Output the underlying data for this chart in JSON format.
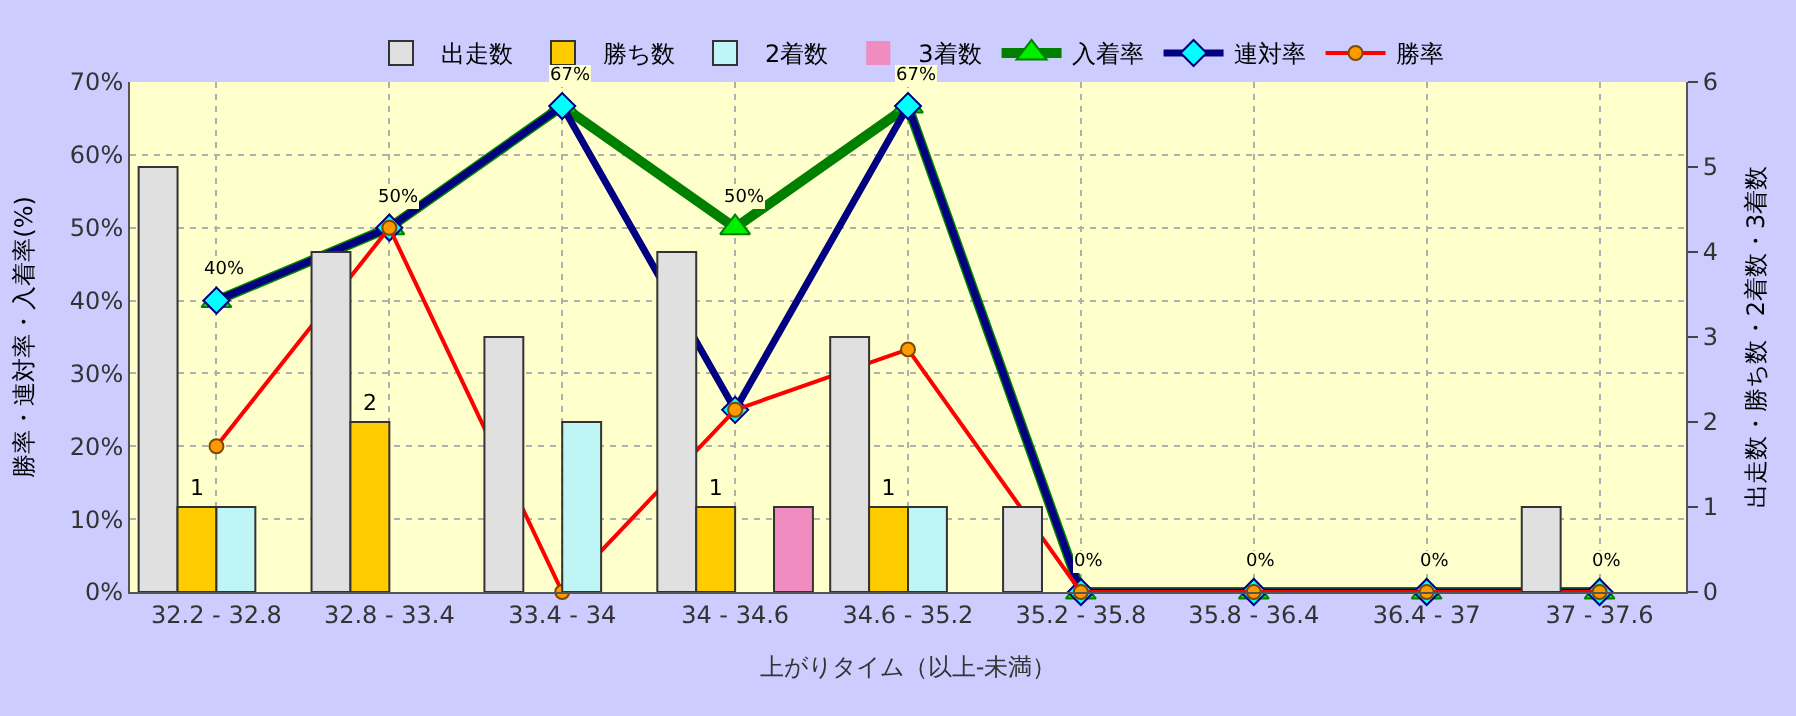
{
  "chart_data": {
    "type": "bar",
    "xlabel": "上がりタイム（以上-未満）",
    "ylabel": "勝率・連対率・入着率(%)",
    "y2label": "出走数・勝ち数・2着数・3着数",
    "categories": [
      "32.2 - 32.8",
      "32.8 - 33.4",
      "33.4 - 34",
      "34 - 34.6",
      "34.6 - 35.2",
      "35.2 - 35.8",
      "35.8 - 36.4",
      "36.4 - 37",
      "37 - 37.6"
    ],
    "series": [
      {
        "name": "出走数",
        "axis": "y2",
        "color": "#e0e0e0",
        "values": [
          5,
          4,
          3,
          4,
          3,
          1,
          0,
          0,
          1
        ]
      },
      {
        "name": "勝ち数",
        "axis": "y2",
        "color": "#ffcc00",
        "values": [
          1,
          2,
          0,
          1,
          1,
          0,
          0,
          0,
          0
        ],
        "value_labels": [
          "1",
          "2",
          null,
          "1",
          "1",
          null,
          null,
          null,
          null
        ]
      },
      {
        "name": "2着数",
        "axis": "y2",
        "color": "#bff5f5",
        "values": [
          1,
          0,
          2,
          0,
          1,
          0,
          0,
          0,
          0
        ]
      },
      {
        "name": "3着数",
        "axis": "y2",
        "color": "#f08cc0",
        "values": [
          0,
          0,
          0,
          1,
          0,
          0,
          0,
          0,
          0
        ]
      },
      {
        "name": "入着率",
        "type": "line",
        "marker": "triangle",
        "color": "#008000",
        "values": [
          40,
          50,
          66.7,
          50,
          66.7,
          0,
          0,
          0,
          0
        ],
        "value_labels": [
          "40%",
          "50%",
          "67%",
          "50%",
          "67%",
          "0%",
          "0%",
          "0%",
          "0%"
        ]
      },
      {
        "name": "連対率",
        "type": "line",
        "marker": "diamond",
        "color": "#000080",
        "values": [
          40,
          50,
          66.7,
          25,
          66.7,
          0,
          0,
          0,
          0
        ]
      },
      {
        "name": "勝率",
        "type": "line",
        "marker": "circle",
        "color": "#ff0000",
        "values": [
          20,
          50,
          0,
          25,
          33.3,
          0,
          0,
          0,
          0
        ]
      }
    ],
    "ylim": [
      0,
      70
    ],
    "yticks": [
      {
        "value": 0,
        "label": "0%"
      },
      {
        "value": 10,
        "label": "10%"
      },
      {
        "value": 20,
        "label": "20%"
      },
      {
        "value": 30,
        "label": "30%"
      },
      {
        "value": 40,
        "label": "40%"
      },
      {
        "value": 50,
        "label": "50%"
      },
      {
        "value": 60,
        "label": "60%"
      },
      {
        "value": 70,
        "label": "70%"
      }
    ],
    "y2lim": [
      0,
      6
    ],
    "y2ticks": [
      0,
      1,
      2,
      3,
      4,
      5,
      6
    ],
    "grid": true,
    "legend": "top"
  }
}
